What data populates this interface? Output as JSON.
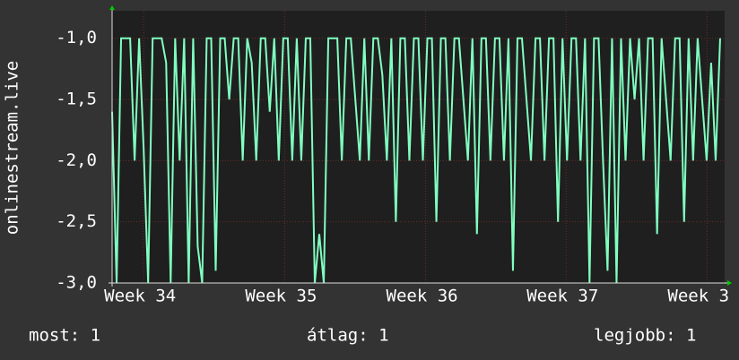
{
  "chart_data": {
    "type": "line",
    "y_label": "onlinestream.live",
    "x": [
      0,
      1,
      2,
      3,
      4,
      5,
      6,
      7,
      8,
      9,
      10,
      11,
      12,
      13,
      14,
      15,
      16,
      17,
      18,
      19,
      20,
      21,
      22,
      23,
      24,
      25,
      26,
      27,
      28,
      29,
      30,
      31,
      32,
      33,
      34,
      35,
      36,
      37,
      38,
      39,
      40,
      41,
      42,
      43,
      44,
      45,
      46,
      47,
      48,
      49,
      50,
      51,
      52,
      53,
      54,
      55,
      56,
      57,
      58,
      59,
      60,
      61,
      62,
      63,
      64,
      65,
      66,
      67,
      68,
      69,
      70,
      71,
      72,
      73,
      74,
      75,
      76,
      77,
      78,
      79,
      80,
      81,
      82,
      83,
      84,
      85,
      86,
      87,
      88,
      89,
      90,
      91,
      92,
      93,
      94,
      95,
      96,
      97,
      98,
      99,
      100,
      101,
      102,
      103,
      104,
      105,
      106,
      107,
      108,
      109,
      110,
      111,
      112,
      113,
      114,
      115,
      116,
      117,
      118,
      119,
      120,
      121,
      122,
      123,
      124,
      125,
      126,
      127,
      128,
      129,
      130,
      131,
      132,
      133,
      134,
      135
    ],
    "series": [
      {
        "color": "#80ffc0",
        "values": [
          -1.6,
          -3.0,
          -1.0,
          -1.0,
          -1.0,
          -2.0,
          -1.0,
          -1.9,
          -3.0,
          -1.0,
          -1.0,
          -1.0,
          -1.2,
          -3.0,
          -1.0,
          -2.0,
          -1.0,
          -3.0,
          -1.0,
          -2.7,
          -3.0,
          -1.0,
          -1.0,
          -2.9,
          -1.0,
          -1.0,
          -1.5,
          -1.0,
          -1.0,
          -2.0,
          -1.0,
          -1.2,
          -2.0,
          -1.0,
          -1.0,
          -1.6,
          -1.0,
          -2.0,
          -1.0,
          -1.0,
          -2.0,
          -1.0,
          -2.0,
          -1.0,
          -1.0,
          -3.0,
          -2.6,
          -3.0,
          -1.0,
          -1.0,
          -1.0,
          -2.0,
          -1.0,
          -1.0,
          -1.5,
          -2.0,
          -1.0,
          -2.0,
          -1.0,
          -1.0,
          -1.3,
          -2.0,
          -1.0,
          -2.5,
          -1.0,
          -1.0,
          -2.0,
          -1.0,
          -1.0,
          -2.0,
          -1.0,
          -1.0,
          -2.5,
          -1.0,
          -1.0,
          -2.0,
          -1.0,
          -1.0,
          -1.5,
          -2.0,
          -1.0,
          -2.6,
          -1.0,
          -1.0,
          -2.0,
          -1.0,
          -1.0,
          -2.0,
          -1.0,
          -2.9,
          -1.0,
          -1.0,
          -1.5,
          -2.0,
          -1.0,
          -1.0,
          -2.0,
          -1.0,
          -1.0,
          -2.5,
          -1.0,
          -2.0,
          -1.0,
          -1.0,
          -2.0,
          -1.0,
          -3.0,
          -1.0,
          -1.0,
          -2.0,
          -2.9,
          -1.0,
          -3.0,
          -1.0,
          -2.0,
          -1.0,
          -1.5,
          -1.0,
          -2.0,
          -1.0,
          -1.0,
          -2.6,
          -1.0,
          -1.5,
          -2.0,
          -1.0,
          -1.0,
          -2.5,
          -1.0,
          -2.0,
          -1.0,
          -1.5,
          -2.0,
          -1.2,
          -2.0,
          -1.0
        ]
      }
    ],
    "xlim": [
      0,
      136
    ],
    "xticks": [
      {
        "value": 7,
        "label": "Week 34"
      },
      {
        "value": 38.3,
        "label": "Week 35"
      },
      {
        "value": 69.6,
        "label": "Week 36"
      },
      {
        "value": 100.8,
        "label": "Week 37"
      },
      {
        "value": 132.1,
        "label": "Week 3"
      }
    ],
    "ylim": [
      -3.0,
      -0.775
    ],
    "yticks": [
      {
        "value": -3.0,
        "label": "-3,0"
      },
      {
        "value": -2.5,
        "label": "-2,5"
      },
      {
        "value": -2.0,
        "label": "-2,0"
      },
      {
        "value": -1.5,
        "label": "-1,5"
      },
      {
        "value": -1.0,
        "label": "-1,0"
      }
    ],
    "grid": true,
    "annotations": [
      "most: 1",
      "átlag: 1",
      "legjobb: 1"
    ]
  }
}
